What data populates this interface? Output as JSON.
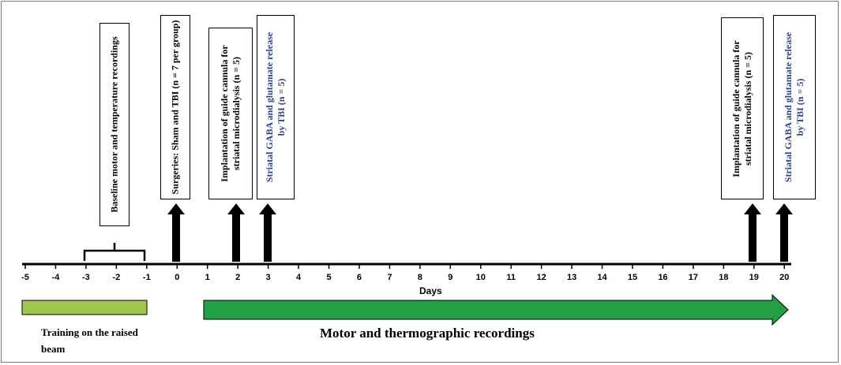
{
  "axis": {
    "title": "Days",
    "ticks": [
      "-5",
      "-4",
      "-3",
      "-2",
      "-1",
      "0",
      "1",
      "2",
      "3",
      "4",
      "5",
      "6",
      "7",
      "8",
      "9",
      "10",
      "11",
      "12",
      "13",
      "14",
      "15",
      "16",
      "17",
      "18",
      "19",
      "20"
    ]
  },
  "boxes": {
    "baseline": "Baseline motor and temperature recordings",
    "surgeries": "Surgeries: Sham and TBI (n = 7 per group)",
    "implant_day2": "Implantation of guide cannula for striatal microdialysis (n = 5)",
    "release_day3": "Striatal GABA and glutamate release by TBI (n = 5)",
    "implant_day19": "Implantation of guide cannula for striatal microdialysis (n = 5)",
    "release_day20": "Striatal GABA and glutamate release by TBI (n = 5)"
  },
  "bars": {
    "training": "Training on the raised beam",
    "motor": "Motor and thermographic recordings"
  },
  "colors": {
    "frame": "#3b8fb4",
    "training_fill": "#9fc84a",
    "motor_fill": "#22a044",
    "release_text": "#2f3f8f"
  }
}
